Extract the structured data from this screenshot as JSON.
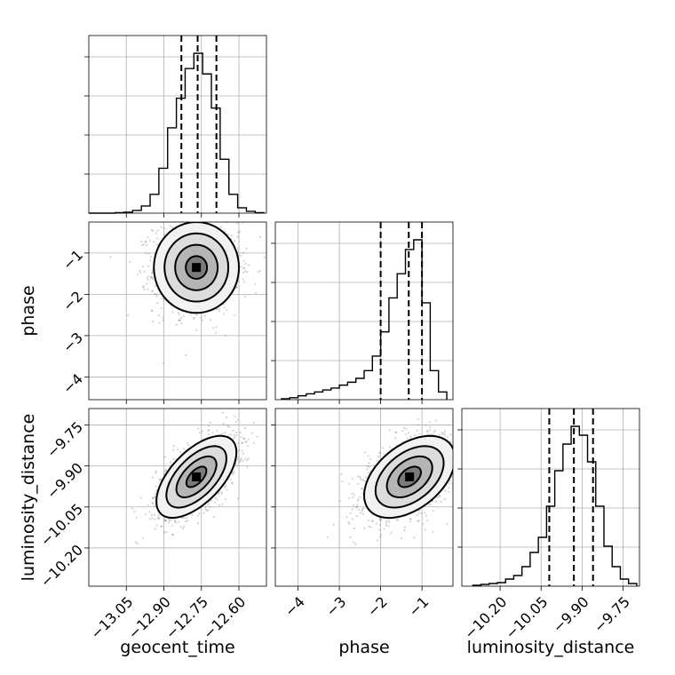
{
  "chart_data": {
    "type": "corner",
    "parameters": [
      "geocent_time",
      "phase",
      "luminosity_distance"
    ],
    "ranges": {
      "geocent_time": [
        -13.2,
        -12.49
      ],
      "phase": [
        -4.55,
        -0.25
      ],
      "luminosity_distance": [
        -10.34,
        -9.69
      ]
    },
    "ticks": {
      "geocent_time": [
        -13.05,
        -12.9,
        -12.75,
        -12.6
      ],
      "phase": [
        -4,
        -3,
        -2,
        -1
      ],
      "luminosity_distance": [
        -10.2,
        -10.05,
        -9.9,
        -9.75
      ]
    },
    "tick_labels": {
      "geocent_time": [
        "−13.05",
        "−12.90",
        "−12.75",
        "−12.60"
      ],
      "phase": [
        "−4",
        "−3",
        "−2",
        "−1"
      ],
      "luminosity_distance": [
        "−10.20",
        "−10.05",
        "−9.90",
        "−9.75"
      ]
    },
    "quantiles": {
      "geocent_time": [
        -12.83,
        -12.765,
        -12.69
      ],
      "phase": [
        -2.0,
        -1.32,
        -1.0
      ],
      "luminosity_distance": [
        -10.02,
        -9.93,
        -9.86
      ]
    },
    "histograms": {
      "geocent_time": {
        "bin_edges": [
          -13.2,
          -13.165,
          -13.13,
          -13.095,
          -13.06,
          -13.025,
          -12.99,
          -12.955,
          -12.92,
          -12.885,
          -12.85,
          -12.815,
          -12.78,
          -12.745,
          -12.71,
          -12.675,
          -12.64,
          -12.605,
          -12.57,
          -12.535,
          -12.5
        ],
        "counts": [
          0,
          0,
          0,
          0.5,
          1,
          3,
          8,
          21,
          50,
          95,
          128,
          161,
          178,
          155,
          117,
          60,
          21,
          6,
          2,
          0.5
        ]
      },
      "phase": {
        "bin_edges": [
          -4.4,
          -4.2,
          -4.0,
          -3.8,
          -3.6,
          -3.4,
          -3.2,
          -3.0,
          -2.8,
          -2.6,
          -2.4,
          -2.2,
          -2.0,
          -1.8,
          -1.6,
          -1.4,
          -1.2,
          -1.0,
          -0.8,
          -0.6,
          -0.4
        ],
        "counts": [
          1,
          2,
          4,
          6,
          8,
          10,
          12,
          15,
          18,
          22,
          30,
          45,
          70,
          105,
          130,
          155,
          165,
          100,
          30,
          8
        ]
      },
      "luminosity_distance": {
        "bin_edges": [
          -10.3,
          -10.27,
          -10.24,
          -10.21,
          -10.18,
          -10.15,
          -10.12,
          -10.09,
          -10.06,
          -10.03,
          -10.0,
          -9.97,
          -9.94,
          -9.91,
          -9.88,
          -9.85,
          -9.82,
          -9.79,
          -9.76,
          -9.73,
          -9.7
        ],
        "counts": [
          1,
          2,
          3,
          4,
          8,
          12,
          22,
          38,
          55,
          90,
          130,
          160,
          180,
          170,
          140,
          90,
          45,
          22,
          8,
          3
        ]
      }
    },
    "joint": [
      {
        "x": "geocent_time",
        "y": "phase",
        "mean": [
          -12.77,
          -1.35
        ],
        "std": [
          0.085,
          0.55
        ],
        "corr": 0.0,
        "contour_levels": [
          0.5,
          1.0,
          1.5,
          2.0
        ]
      },
      {
        "x": "geocent_time",
        "y": "luminosity_distance",
        "mean": [
          -12.77,
          -9.94
        ],
        "std": [
          0.08,
          0.075
        ],
        "corr": 0.6,
        "contour_levels": [
          0.5,
          1.0,
          1.5,
          2.0
        ]
      },
      {
        "x": "phase",
        "y": "luminosity_distance",
        "mean": [
          -1.3,
          -9.94
        ],
        "std": [
          0.55,
          0.075
        ],
        "corr": 0.45,
        "contour_levels": [
          0.5,
          1.0,
          1.5,
          2.0
        ]
      }
    ]
  }
}
